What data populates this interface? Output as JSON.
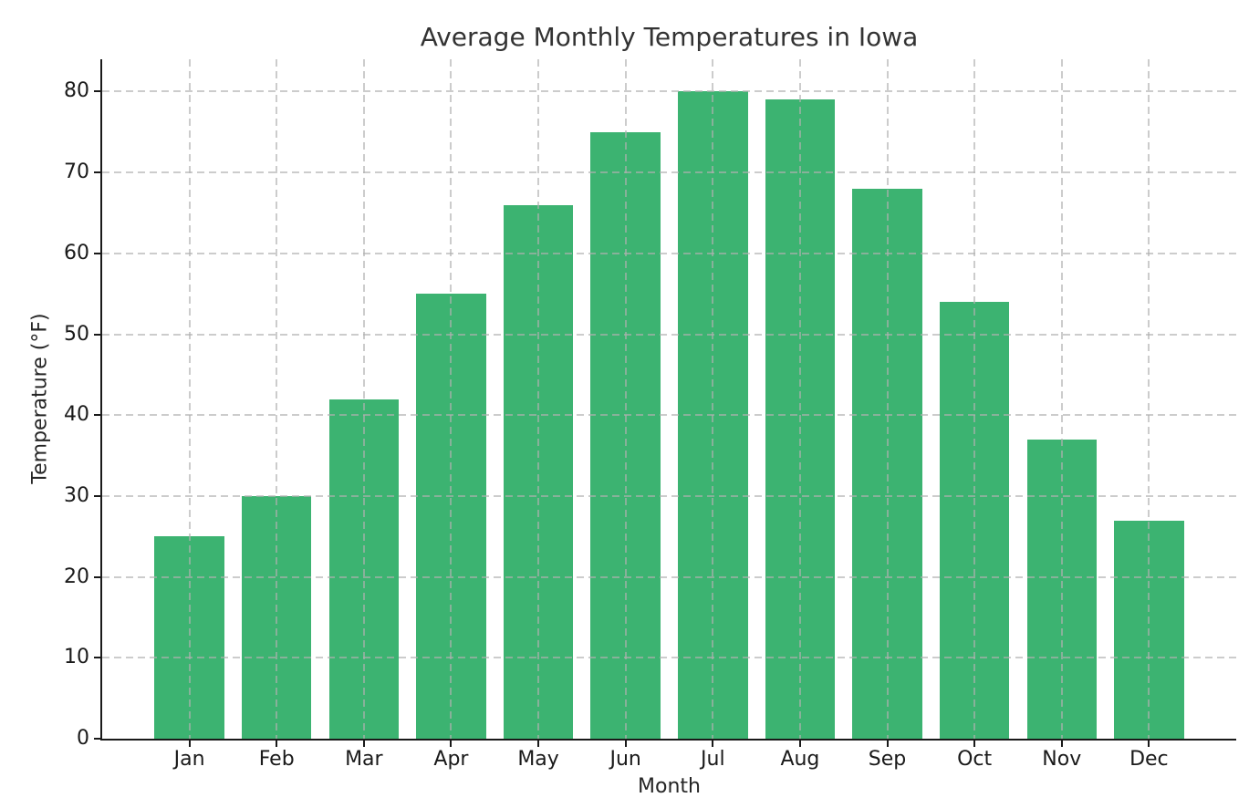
{
  "figure": {
    "title": "Average Monthly Temperatures in Iowa",
    "xlabel": "Month",
    "ylabel": "Temperature (°F)"
  },
  "chart_data": {
    "type": "bar",
    "title": "Average Monthly Temperatures in Iowa",
    "xlabel": "Month",
    "ylabel": "Temperature (°F)",
    "categories": [
      "Jan",
      "Feb",
      "Mar",
      "Apr",
      "May",
      "Jun",
      "Jul",
      "Aug",
      "Sep",
      "Oct",
      "Nov",
      "Dec"
    ],
    "values": [
      25,
      30,
      42,
      55,
      66,
      75,
      80,
      79,
      68,
      54,
      37,
      27
    ],
    "ylim": [
      0,
      84
    ],
    "yticks": [
      0,
      10,
      20,
      30,
      40,
      50,
      60,
      70,
      80
    ],
    "bar_color": "#3cb371",
    "grid": "dashed, horizontal and vertical, drawn over bars",
    "grid_color": "#b0b0b0",
    "axis_color": "#1a1a1a",
    "title_color": "#333333",
    "legend": "none",
    "spines": "left and bottom only"
  }
}
